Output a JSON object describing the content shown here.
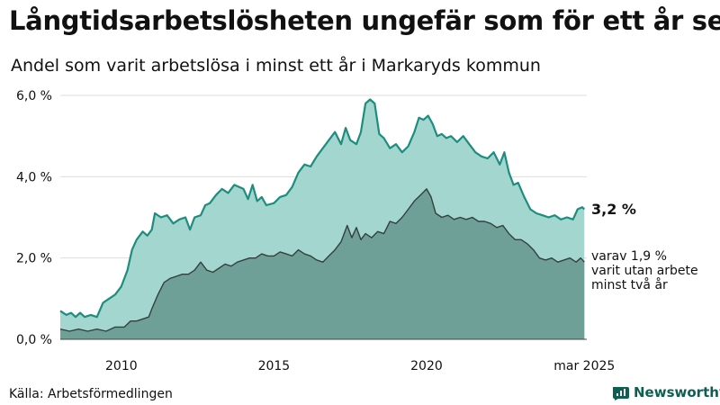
{
  "title": "Långtidsarbetslösheten ungefär som för ett år sen",
  "subtitle": "Andel som varit arbetslösa i minst ett år i Markaryds kommun",
  "source": "Källa: Arbetsförmedlingen",
  "brand": {
    "name": "Newsworthy",
    "icon": "newsworthy-logo-icon",
    "color": "#0f5e52"
  },
  "annotations": {
    "total_value": "3,2 %",
    "sub_line1": "varav 1,9 %",
    "sub_line2": "varit utan arbete",
    "sub_line3": "minst två år"
  },
  "colors": {
    "total_fill": "#a3d6cf",
    "total_line": "#1e8c7e",
    "sub_fill": "#6fa098",
    "sub_line": "#33403e",
    "grid": "#dddddd",
    "text": "#111111"
  },
  "chart_data": {
    "type": "area",
    "x_domain": [
      2008.0,
      2025.25
    ],
    "ylim": [
      0,
      6
    ],
    "yticks": [
      0,
      2,
      4,
      6
    ],
    "ytick_labels": [
      "0,0 %",
      "2,0 %",
      "4,0 %",
      "6,0 %"
    ],
    "xticks": [
      2010,
      2015,
      2020,
      2025.17
    ],
    "xtick_labels": [
      "2010",
      "2015",
      "2020",
      "mar 2025"
    ],
    "grid": true,
    "series": [
      {
        "name": "Minst ett år",
        "unit": "%",
        "points": [
          [
            2008.0,
            0.7
          ],
          [
            2008.2,
            0.6
          ],
          [
            2008.35,
            0.65
          ],
          [
            2008.5,
            0.55
          ],
          [
            2008.65,
            0.65
          ],
          [
            2008.8,
            0.55
          ],
          [
            2009.0,
            0.6
          ],
          [
            2009.2,
            0.55
          ],
          [
            2009.4,
            0.9
          ],
          [
            2009.6,
            1.0
          ],
          [
            2009.8,
            1.1
          ],
          [
            2010.0,
            1.3
          ],
          [
            2010.2,
            1.7
          ],
          [
            2010.35,
            2.2
          ],
          [
            2010.5,
            2.45
          ],
          [
            2010.6,
            2.55
          ],
          [
            2010.7,
            2.65
          ],
          [
            2010.85,
            2.55
          ],
          [
            2011.0,
            2.7
          ],
          [
            2011.1,
            3.1
          ],
          [
            2011.3,
            3.0
          ],
          [
            2011.5,
            3.05
          ],
          [
            2011.7,
            2.85
          ],
          [
            2011.9,
            2.95
          ],
          [
            2012.1,
            3.0
          ],
          [
            2012.25,
            2.7
          ],
          [
            2012.4,
            3.0
          ],
          [
            2012.6,
            3.05
          ],
          [
            2012.75,
            3.3
          ],
          [
            2012.9,
            3.35
          ],
          [
            2013.1,
            3.55
          ],
          [
            2013.3,
            3.7
          ],
          [
            2013.5,
            3.6
          ],
          [
            2013.7,
            3.8
          ],
          [
            2013.85,
            3.75
          ],
          [
            2014.0,
            3.7
          ],
          [
            2014.15,
            3.45
          ],
          [
            2014.3,
            3.8
          ],
          [
            2014.45,
            3.4
          ],
          [
            2014.6,
            3.5
          ],
          [
            2014.75,
            3.3
          ],
          [
            2015.0,
            3.35
          ],
          [
            2015.2,
            3.5
          ],
          [
            2015.4,
            3.55
          ],
          [
            2015.6,
            3.75
          ],
          [
            2015.8,
            4.1
          ],
          [
            2016.0,
            4.3
          ],
          [
            2016.2,
            4.25
          ],
          [
            2016.4,
            4.5
          ],
          [
            2016.6,
            4.7
          ],
          [
            2016.8,
            4.9
          ],
          [
            2017.0,
            5.1
          ],
          [
            2017.2,
            4.8
          ],
          [
            2017.35,
            5.2
          ],
          [
            2017.5,
            4.9
          ],
          [
            2017.7,
            4.8
          ],
          [
            2017.85,
            5.1
          ],
          [
            2018.0,
            5.8
          ],
          [
            2018.15,
            5.9
          ],
          [
            2018.3,
            5.8
          ],
          [
            2018.45,
            5.05
          ],
          [
            2018.6,
            4.95
          ],
          [
            2018.8,
            4.7
          ],
          [
            2019.0,
            4.8
          ],
          [
            2019.2,
            4.6
          ],
          [
            2019.4,
            4.75
          ],
          [
            2019.6,
            5.1
          ],
          [
            2019.75,
            5.45
          ],
          [
            2019.9,
            5.4
          ],
          [
            2020.05,
            5.5
          ],
          [
            2020.2,
            5.3
          ],
          [
            2020.35,
            5.0
          ],
          [
            2020.5,
            5.05
          ],
          [
            2020.65,
            4.95
          ],
          [
            2020.8,
            5.0
          ],
          [
            2021.0,
            4.85
          ],
          [
            2021.2,
            5.0
          ],
          [
            2021.4,
            4.8
          ],
          [
            2021.6,
            4.6
          ],
          [
            2021.8,
            4.5
          ],
          [
            2022.0,
            4.45
          ],
          [
            2022.2,
            4.6
          ],
          [
            2022.4,
            4.3
          ],
          [
            2022.55,
            4.6
          ],
          [
            2022.7,
            4.1
          ],
          [
            2022.85,
            3.8
          ],
          [
            2023.0,
            3.85
          ],
          [
            2023.2,
            3.5
          ],
          [
            2023.4,
            3.2
          ],
          [
            2023.6,
            3.1
          ],
          [
            2023.8,
            3.05
          ],
          [
            2024.0,
            3.0
          ],
          [
            2024.2,
            3.05
          ],
          [
            2024.4,
            2.95
          ],
          [
            2024.6,
            3.0
          ],
          [
            2024.8,
            2.95
          ],
          [
            2024.95,
            3.2
          ],
          [
            2025.1,
            3.25
          ],
          [
            2025.17,
            3.2
          ]
        ]
      },
      {
        "name": "Minst två år",
        "unit": "%",
        "points": [
          [
            2008.0,
            0.25
          ],
          [
            2008.3,
            0.2
          ],
          [
            2008.6,
            0.25
          ],
          [
            2008.9,
            0.2
          ],
          [
            2009.2,
            0.25
          ],
          [
            2009.5,
            0.2
          ],
          [
            2009.8,
            0.3
          ],
          [
            2010.1,
            0.3
          ],
          [
            2010.3,
            0.45
          ],
          [
            2010.5,
            0.45
          ],
          [
            2010.7,
            0.5
          ],
          [
            2010.9,
            0.55
          ],
          [
            2011.0,
            0.75
          ],
          [
            2011.2,
            1.1
          ],
          [
            2011.4,
            1.4
          ],
          [
            2011.6,
            1.5
          ],
          [
            2011.8,
            1.55
          ],
          [
            2012.0,
            1.6
          ],
          [
            2012.2,
            1.6
          ],
          [
            2012.4,
            1.7
          ],
          [
            2012.6,
            1.9
          ],
          [
            2012.8,
            1.7
          ],
          [
            2013.0,
            1.65
          ],
          [
            2013.2,
            1.75
          ],
          [
            2013.4,
            1.85
          ],
          [
            2013.6,
            1.8
          ],
          [
            2013.8,
            1.9
          ],
          [
            2014.0,
            1.95
          ],
          [
            2014.2,
            2.0
          ],
          [
            2014.4,
            2.0
          ],
          [
            2014.6,
            2.1
          ],
          [
            2014.8,
            2.05
          ],
          [
            2015.0,
            2.05
          ],
          [
            2015.2,
            2.15
          ],
          [
            2015.4,
            2.1
          ],
          [
            2015.6,
            2.05
          ],
          [
            2015.8,
            2.2
          ],
          [
            2016.0,
            2.1
          ],
          [
            2016.2,
            2.05
          ],
          [
            2016.4,
            1.95
          ],
          [
            2016.6,
            1.9
          ],
          [
            2016.8,
            2.05
          ],
          [
            2017.0,
            2.2
          ],
          [
            2017.2,
            2.4
          ],
          [
            2017.4,
            2.8
          ],
          [
            2017.55,
            2.5
          ],
          [
            2017.7,
            2.75
          ],
          [
            2017.85,
            2.45
          ],
          [
            2018.0,
            2.6
          ],
          [
            2018.2,
            2.5
          ],
          [
            2018.4,
            2.65
          ],
          [
            2018.6,
            2.6
          ],
          [
            2018.8,
            2.9
          ],
          [
            2019.0,
            2.85
          ],
          [
            2019.2,
            3.0
          ],
          [
            2019.4,
            3.2
          ],
          [
            2019.6,
            3.4
          ],
          [
            2019.8,
            3.55
          ],
          [
            2020.0,
            3.7
          ],
          [
            2020.15,
            3.5
          ],
          [
            2020.3,
            3.1
          ],
          [
            2020.5,
            3.0
          ],
          [
            2020.7,
            3.05
          ],
          [
            2020.9,
            2.95
          ],
          [
            2021.1,
            3.0
          ],
          [
            2021.3,
            2.95
          ],
          [
            2021.5,
            3.0
          ],
          [
            2021.7,
            2.9
          ],
          [
            2021.9,
            2.9
          ],
          [
            2022.1,
            2.85
          ],
          [
            2022.3,
            2.75
          ],
          [
            2022.5,
            2.8
          ],
          [
            2022.7,
            2.6
          ],
          [
            2022.9,
            2.45
          ],
          [
            2023.1,
            2.45
          ],
          [
            2023.3,
            2.35
          ],
          [
            2023.5,
            2.2
          ],
          [
            2023.7,
            2.0
          ],
          [
            2023.9,
            1.95
          ],
          [
            2024.1,
            2.0
          ],
          [
            2024.3,
            1.9
          ],
          [
            2024.5,
            1.95
          ],
          [
            2024.7,
            2.0
          ],
          [
            2024.9,
            1.9
          ],
          [
            2025.05,
            2.0
          ],
          [
            2025.17,
            1.9
          ]
        ]
      }
    ]
  }
}
